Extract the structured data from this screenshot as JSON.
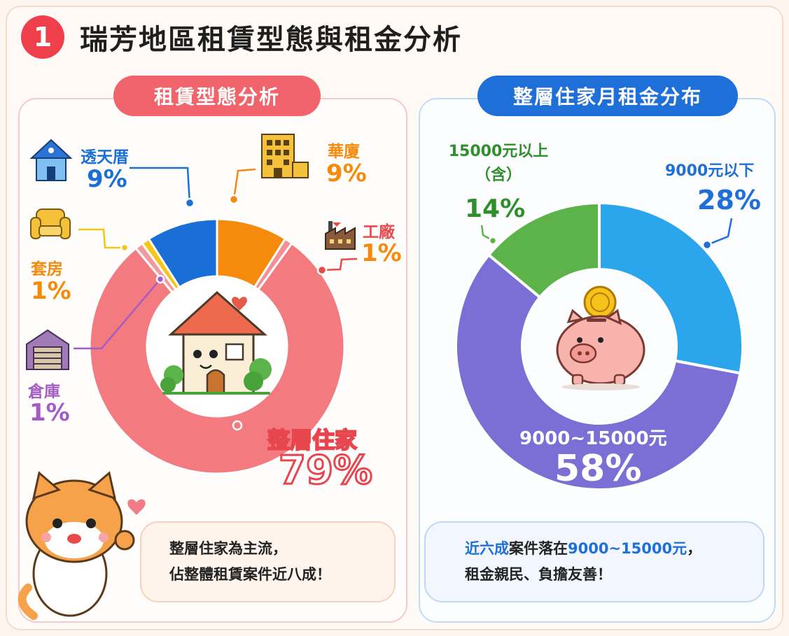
{
  "header": {
    "number": "1",
    "title": "瑞芳地區租賃型態與租金分析"
  },
  "left_panel": {
    "title": "租賃型態分析"
  },
  "right_panel": {
    "title": "整層住家月租金分布"
  },
  "left_note": {
    "line1": "整層住家為主流，",
    "line2": "佔整體租賃案件近八成！"
  },
  "right_note": {
    "hl": "近六成",
    "line1_mid": "案件落在",
    "hl2": "9000~15000元",
    "line1_end": "，",
    "line2": "租金親民、負擔友善！"
  },
  "colors": {
    "whole": "#f37b80",
    "terrace": "#1a6fd6",
    "building": "#f58a0b",
    "factory": "#e94b4b",
    "suite": "#f5c518",
    "warehouse": "#a35cc4",
    "low": "#2ba5ec",
    "mid": "#7b6ed4",
    "high": "#5cb34a"
  },
  "chart_data": [
    {
      "type": "pie",
      "title": "租賃型態分析",
      "categories": [
        "整層住家",
        "透天厝",
        "華廈",
        "工廠",
        "套房",
        "倉庫"
      ],
      "values": [
        79,
        9,
        9,
        1,
        1,
        1
      ],
      "value_labels": [
        "79%",
        "9%",
        "9%",
        "1%",
        "1%",
        "1%"
      ],
      "donut": true
    },
    {
      "type": "pie",
      "title": "整層住家月租金分布",
      "categories": [
        "9000元以下",
        "9000~15000元",
        "15000元以上（含）"
      ],
      "values": [
        28,
        58,
        14
      ],
      "value_labels": [
        "28%",
        "58%",
        "14%"
      ],
      "donut": true
    }
  ]
}
